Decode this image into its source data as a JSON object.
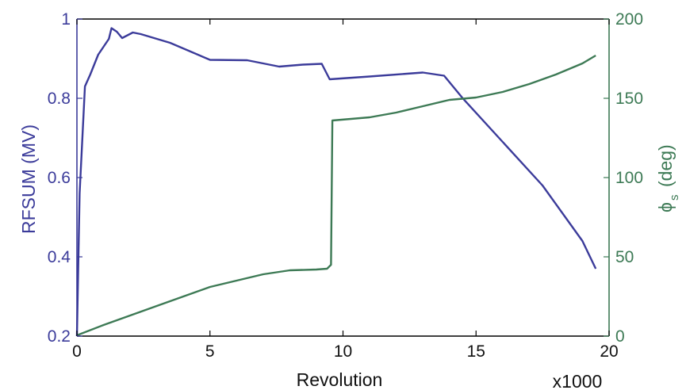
{
  "chart_data": {
    "type": "line",
    "xlabel": "Revolution",
    "x_multiplier_label": "x1000",
    "xlim": [
      0,
      20
    ],
    "xticks": [
      0,
      5,
      10,
      15,
      20
    ],
    "left_axis": {
      "label": "RFSUM (MV)",
      "color": "#3b3b9a",
      "ylim": [
        0.2,
        1.0
      ],
      "ticks": [
        0.2,
        0.4,
        0.6,
        0.8,
        1.0
      ],
      "tick_labels": [
        "0.2",
        "0.4",
        "0.6",
        "0.8",
        "1"
      ]
    },
    "right_axis": {
      "label_main": "ϕ",
      "label_sub": "s",
      "label_unit": "(deg)",
      "color": "#3d7a55",
      "ylim": [
        0,
        200
      ],
      "ticks": [
        0,
        50,
        100,
        150,
        200
      ],
      "tick_labels": [
        "0",
        "50",
        "100",
        "150",
        "200"
      ]
    },
    "series": [
      {
        "axis": "left",
        "color": "#3b3b9a",
        "points": [
          [
            0.0,
            0.2
          ],
          [
            0.1,
            0.56
          ],
          [
            0.3,
            0.83
          ],
          [
            0.5,
            0.86
          ],
          [
            0.8,
            0.91
          ],
          [
            1.2,
            0.95
          ],
          [
            1.3,
            0.977
          ],
          [
            1.5,
            0.968
          ],
          [
            1.7,
            0.952
          ],
          [
            2.1,
            0.966
          ],
          [
            2.4,
            0.962
          ],
          [
            3.5,
            0.94
          ],
          [
            5.0,
            0.897
          ],
          [
            6.4,
            0.896
          ],
          [
            7.6,
            0.88
          ],
          [
            8.5,
            0.885
          ],
          [
            9.2,
            0.887
          ],
          [
            9.5,
            0.848
          ],
          [
            11.0,
            0.855
          ],
          [
            13.0,
            0.865
          ],
          [
            13.8,
            0.857
          ],
          [
            14.5,
            0.8
          ],
          [
            16.0,
            0.69
          ],
          [
            17.5,
            0.58
          ],
          [
            19.0,
            0.44
          ],
          [
            19.5,
            0.37
          ]
        ]
      },
      {
        "axis": "right",
        "color": "#3d7a55",
        "points": [
          [
            0.0,
            0.5
          ],
          [
            1.0,
            7
          ],
          [
            2.0,
            13
          ],
          [
            3.0,
            19
          ],
          [
            4.0,
            25
          ],
          [
            5.0,
            31
          ],
          [
            6.0,
            35
          ],
          [
            7.0,
            39
          ],
          [
            8.0,
            41.5
          ],
          [
            9.0,
            42
          ],
          [
            9.4,
            42.5
          ],
          [
            9.55,
            45
          ],
          [
            9.6,
            136
          ],
          [
            11.0,
            138
          ],
          [
            12.0,
            141
          ],
          [
            13.0,
            145
          ],
          [
            14.0,
            149
          ],
          [
            15.0,
            150.5
          ],
          [
            16.0,
            154
          ],
          [
            17.0,
            159
          ],
          [
            18.0,
            165
          ],
          [
            19.0,
            172
          ],
          [
            19.5,
            177
          ]
        ]
      }
    ],
    "grid": false,
    "legend": "none"
  }
}
